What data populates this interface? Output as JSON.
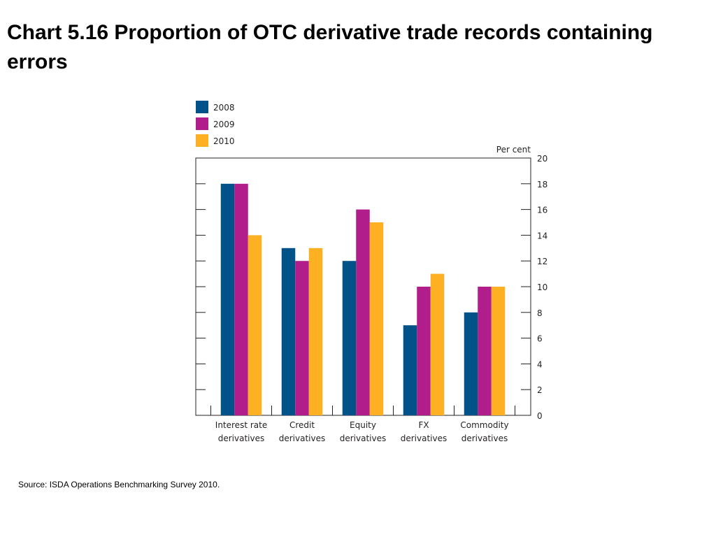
{
  "title": "Chart 5.16  Proportion of OTC derivative trade records containing errors",
  "source": "Source:  ISDA Operations Benchmarking Survey 2010.",
  "colors": {
    "2008": "#005288",
    "2009": "#b11d8b",
    "2010": "#fdb022"
  },
  "chart_data": {
    "type": "bar",
    "unit_label": "Per cent",
    "categories": [
      [
        "Interest rate",
        "derivatives"
      ],
      [
        "Credit",
        "derivatives"
      ],
      [
        "Equity",
        "derivatives"
      ],
      [
        "FX",
        "derivatives"
      ],
      [
        "Commodity",
        "derivatives"
      ]
    ],
    "series": [
      {
        "name": "2008",
        "values": [
          18,
          13,
          12,
          7,
          8
        ]
      },
      {
        "name": "2009",
        "values": [
          18,
          12,
          16,
          10,
          10
        ]
      },
      {
        "name": "2010",
        "values": [
          14,
          13,
          15,
          11,
          10
        ]
      }
    ],
    "ylim": [
      0,
      20
    ],
    "yticks": [
      0,
      2,
      4,
      6,
      8,
      10,
      12,
      14,
      16,
      18,
      20
    ],
    "legend_position": "top-left",
    "grid": false
  }
}
